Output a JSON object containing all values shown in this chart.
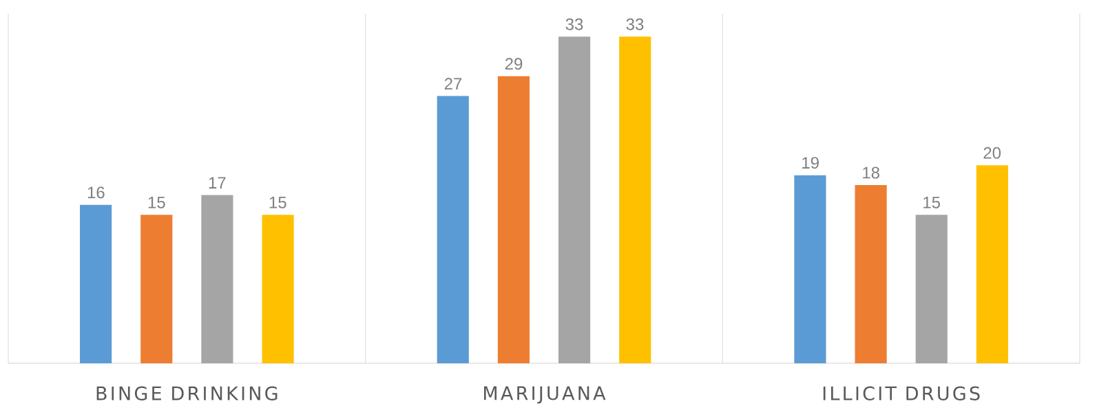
{
  "chart_data": {
    "type": "bar",
    "categories": [
      "BINGE DRINKING",
      "MARIJUANA",
      "ILLICIT DRUGS"
    ],
    "series": [
      {
        "color": "#5b9bd5",
        "values": [
          16,
          27,
          19
        ]
      },
      {
        "color": "#ed7d31",
        "values": [
          15,
          29,
          18
        ]
      },
      {
        "color": "#a5a5a5",
        "values": [
          17,
          33,
          15
        ]
      },
      {
        "color": "#ffc000",
        "values": [
          15,
          33,
          20
        ]
      }
    ],
    "data_labels": true,
    "grid": "x"
  }
}
